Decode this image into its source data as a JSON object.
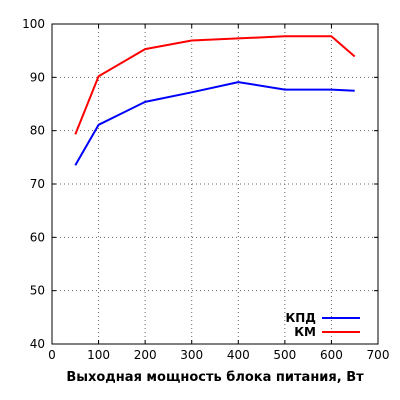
{
  "chart_data": {
    "type": "line",
    "title": "",
    "xlabel": "Выходная мощность блока питания, Вт",
    "ylabel": "",
    "xlim": [
      0,
      700
    ],
    "ylim": [
      40,
      100
    ],
    "xticks": [
      0,
      100,
      200,
      300,
      400,
      500,
      600,
      700
    ],
    "yticks": [
      40,
      50,
      60,
      70,
      80,
      90,
      100
    ],
    "grid": true,
    "legend_position": "bottom-right",
    "series": [
      {
        "name": "КПД",
        "color": "#0000ff",
        "x": [
          50,
          100,
          200,
          300,
          400,
          500,
          600,
          650
        ],
        "y": [
          73.5,
          81.1,
          85.4,
          87.2,
          89.1,
          87.7,
          87.7,
          87.5
        ]
      },
      {
        "name": "КМ",
        "color": "#ff0000",
        "x": [
          50,
          100,
          200,
          300,
          400,
          500,
          600,
          650
        ],
        "y": [
          79.3,
          90.2,
          95.3,
          96.9,
          97.3,
          97.7,
          97.7,
          93.9
        ]
      }
    ]
  }
}
